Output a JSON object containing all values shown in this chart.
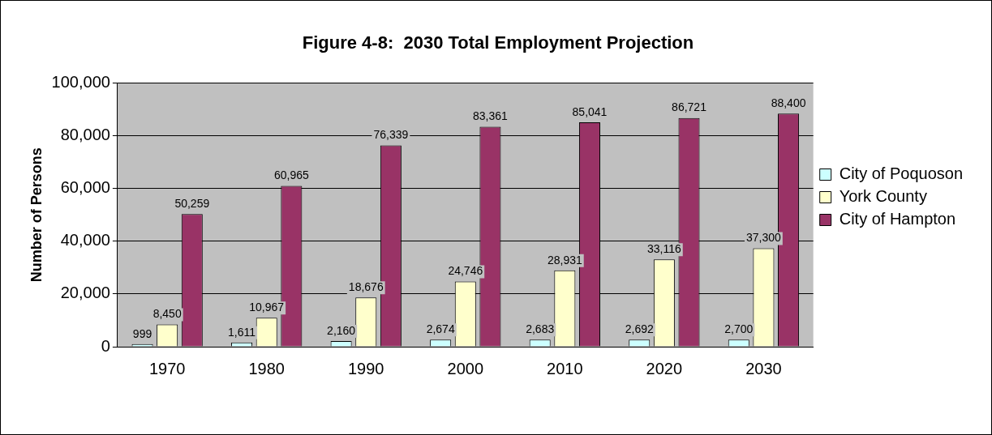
{
  "chart_data": {
    "type": "bar",
    "title": "Figure 4-8:  2030 Total Employment Projection",
    "ylabel": "Number of Persons",
    "categories": [
      "1970",
      "1980",
      "1990",
      "2000",
      "2010",
      "2020",
      "2030"
    ],
    "series": [
      {
        "name": "City of Poquoson",
        "color": "#ccffff",
        "values": [
          999,
          1611,
          2160,
          2674,
          2683,
          2692,
          2700
        ],
        "value_labels": [
          "999",
          "1,611",
          "2,160",
          "2,674",
          "2,683",
          "2,692",
          "2,700"
        ]
      },
      {
        "name": "York County",
        "color": "#ffffcc",
        "values": [
          8450,
          10967,
          18676,
          24746,
          28931,
          33116,
          37300
        ],
        "value_labels": [
          "8,450",
          "10,967",
          "18,676",
          "24,746",
          "28,931",
          "33,116",
          "37,300"
        ]
      },
      {
        "name": "City of Hampton",
        "color": "#993366",
        "values": [
          50259,
          60965,
          76339,
          83361,
          85041,
          86721,
          88400
        ],
        "value_labels": [
          "50,259",
          "60,965",
          "76,339",
          "83,361",
          "85,041",
          "86,721",
          "88,400"
        ]
      }
    ],
    "ylim": [
      0,
      100000
    ],
    "yticks": [
      {
        "value": 0,
        "label": "0"
      },
      {
        "value": 20000,
        "label": "20,000"
      },
      {
        "value": 40000,
        "label": "40,000"
      },
      {
        "value": 60000,
        "label": "60,000"
      },
      {
        "value": 80000,
        "label": "80,000"
      },
      {
        "value": 100000,
        "label": "100,000"
      }
    ],
    "grid": "y",
    "legend": "right"
  }
}
